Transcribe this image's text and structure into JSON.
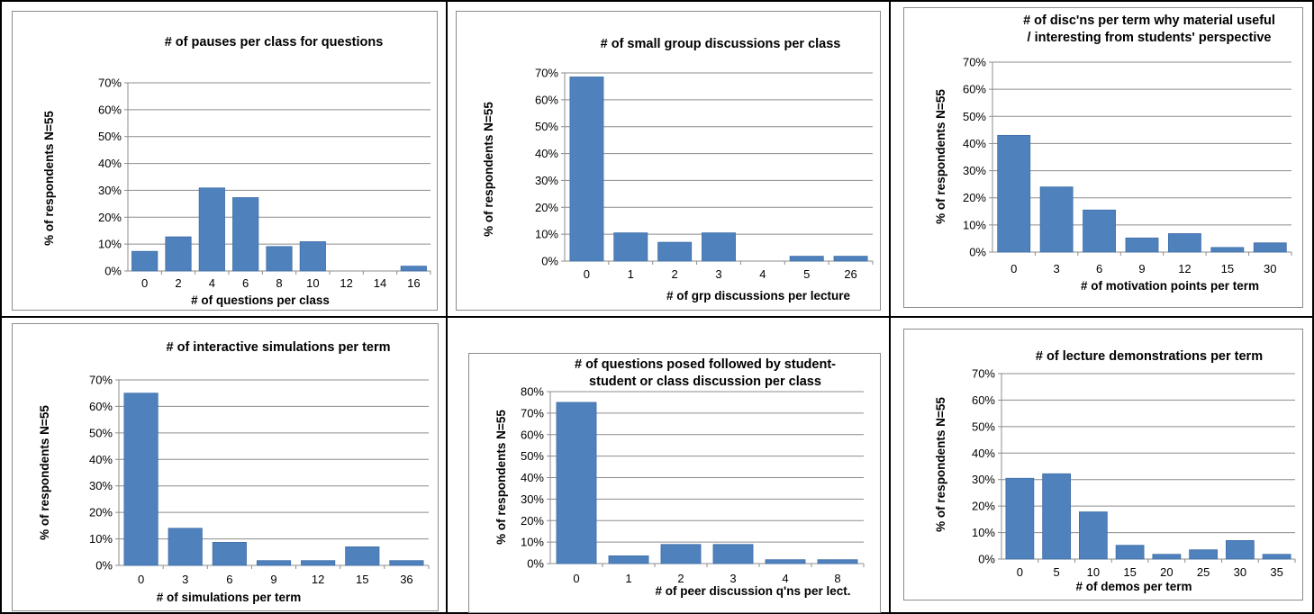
{
  "colors": {
    "bar": "#4f81bd",
    "bar_edge": "#3f6fa8",
    "grid": "#8c8c8c",
    "axis": "#8c8c8c"
  },
  "chart_data": [
    {
      "type": "bar",
      "title": [
        "# of pauses per class for questions"
      ],
      "xlabel": "# of questions per class",
      "ylabel": "% of respondents N=55",
      "categories": [
        "0",
        "2",
        "4",
        "6",
        "8",
        "10",
        "12",
        "14",
        "16"
      ],
      "values": [
        0.073,
        0.127,
        0.309,
        0.273,
        0.091,
        0.109,
        0,
        0,
        0.018
      ],
      "ylim": [
        0,
        0.7
      ],
      "yticks": [
        "0%",
        "10%",
        "20%",
        "30%",
        "40%",
        "50%",
        "60%",
        "70%"
      ],
      "grid": true
    },
    {
      "type": "bar",
      "title": [
        "# of small group discussions per class"
      ],
      "xlabel": "# of grp discussions per lecture",
      "ylabel": "% of respondents N=55",
      "categories": [
        "0",
        "1",
        "2",
        "3",
        "4",
        "5",
        "26"
      ],
      "values": [
        0.685,
        0.105,
        0.07,
        0.105,
        0,
        0.018,
        0.018
      ],
      "ylim": [
        0,
        0.7
      ],
      "yticks": [
        "0%",
        "10%",
        "20%",
        "30%",
        "40%",
        "50%",
        "60%",
        "70%"
      ],
      "grid": true
    },
    {
      "type": "bar",
      "title": [
        "# of disc'ns per term why material useful",
        "/ interesting from students' perspective"
      ],
      "xlabel": "# of motivation points per term",
      "ylabel": "% of respondents N=55",
      "categories": [
        "0",
        "3",
        "6",
        "9",
        "12",
        "15",
        "30"
      ],
      "values": [
        0.43,
        0.24,
        0.155,
        0.052,
        0.068,
        0.017,
        0.034
      ],
      "ylim": [
        0,
        0.7
      ],
      "yticks": [
        "0%",
        "10%",
        "20%",
        "30%",
        "40%",
        "50%",
        "60%",
        "70%"
      ],
      "grid": true
    },
    {
      "type": "bar",
      "title": [
        "# of interactive simulations per term"
      ],
      "xlabel": "# of simulations per term",
      "ylabel": "% of respondents N=55",
      "categories": [
        "0",
        "3",
        "6",
        "9",
        "12",
        "15",
        "36"
      ],
      "values": [
        0.65,
        0.14,
        0.087,
        0.018,
        0.018,
        0.07,
        0.018
      ],
      "ylim": [
        0,
        0.7
      ],
      "yticks": [
        "0%",
        "10%",
        "20%",
        "30%",
        "40%",
        "50%",
        "60%",
        "70%"
      ],
      "grid": true
    },
    {
      "type": "bar",
      "title": [
        "# of questions posed followed by student-",
        "student or class discussion per class"
      ],
      "xlabel": "# of peer discussion q'ns per lect.",
      "ylabel": "% of respondents N=55",
      "categories": [
        "0",
        "1",
        "2",
        "3",
        "4",
        "8"
      ],
      "values": [
        0.75,
        0.036,
        0.089,
        0.089,
        0.018,
        0.018
      ],
      "ylim": [
        0,
        0.8
      ],
      "yticks": [
        "0%",
        "10%",
        "20%",
        "30%",
        "40%",
        "50%",
        "60%",
        "70%",
        "80%"
      ],
      "grid": true
    },
    {
      "type": "bar",
      "title": [
        "# of lecture demonstrations per term"
      ],
      "xlabel": "# of demos per term",
      "ylabel": "% of respondents N=55",
      "categories": [
        "0",
        "5",
        "10",
        "15",
        "20",
        "25",
        "30",
        "35"
      ],
      "values": [
        0.305,
        0.322,
        0.178,
        0.052,
        0.018,
        0.035,
        0.07,
        0.018
      ],
      "ylim": [
        0,
        0.7
      ],
      "yticks": [
        "0%",
        "10%",
        "20%",
        "30%",
        "40%",
        "50%",
        "60%",
        "70%"
      ],
      "grid": true
    }
  ]
}
